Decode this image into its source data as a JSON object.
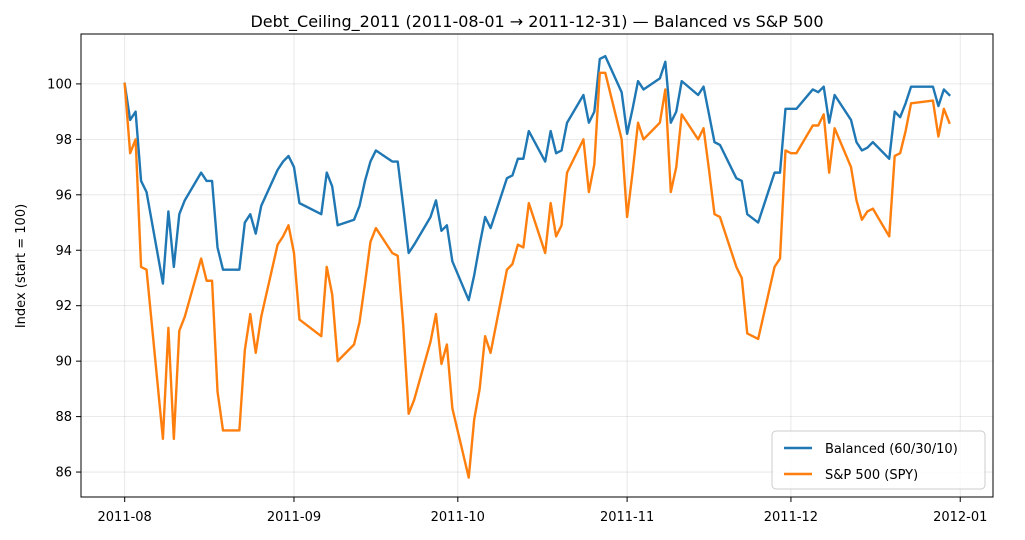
{
  "chart_data": {
    "type": "line",
    "title": "Debt_Ceiling_2011 (2011-08-01 → 2011-12-31) — Balanced vs S&P 500",
    "xlabel": "",
    "ylabel": "Index (start = 100)",
    "xlim": [
      "2011-07-24",
      "2012-01-07"
    ],
    "ylim": [
      85.1,
      101.8
    ],
    "x_ticks": [
      "2011-08-01",
      "2011-09-01",
      "2011-10-01",
      "2011-11-01",
      "2011-12-01",
      "2012-01-01"
    ],
    "x_tick_labels": [
      "2011-08",
      "2011-09",
      "2011-10",
      "2011-11",
      "2011-12",
      "2012-01"
    ],
    "y_ticks": [
      86,
      88,
      90,
      92,
      94,
      96,
      98,
      100
    ],
    "y_tick_labels": [
      "86",
      "88",
      "90",
      "92",
      "94",
      "96",
      "98",
      "100"
    ],
    "grid": true,
    "legend_position": "bottom-right",
    "series": [
      {
        "name": "Balanced (60/30/10)",
        "color": "#1f77b4",
        "points": [
          [
            "2011-08-01",
            100.0
          ],
          [
            "2011-08-02",
            98.7
          ],
          [
            "2011-08-03",
            99.0
          ],
          [
            "2011-08-04",
            96.5
          ],
          [
            "2011-08-05",
            96.1
          ],
          [
            "2011-08-08",
            92.8
          ],
          [
            "2011-08-09",
            95.4
          ],
          [
            "2011-08-10",
            93.4
          ],
          [
            "2011-08-11",
            95.3
          ],
          [
            "2011-08-12",
            95.8
          ],
          [
            "2011-08-15",
            96.8
          ],
          [
            "2011-08-16",
            96.5
          ],
          [
            "2011-08-17",
            96.5
          ],
          [
            "2011-08-18",
            94.1
          ],
          [
            "2011-08-19",
            93.3
          ],
          [
            "2011-08-22",
            93.3
          ],
          [
            "2011-08-23",
            95.0
          ],
          [
            "2011-08-24",
            95.3
          ],
          [
            "2011-08-25",
            94.6
          ],
          [
            "2011-08-26",
            95.6
          ],
          [
            "2011-08-29",
            96.9
          ],
          [
            "2011-08-30",
            97.2
          ],
          [
            "2011-08-31",
            97.4
          ],
          [
            "2011-09-01",
            97.0
          ],
          [
            "2011-09-02",
            95.7
          ],
          [
            "2011-09-06",
            95.3
          ],
          [
            "2011-09-07",
            96.8
          ],
          [
            "2011-09-08",
            96.3
          ],
          [
            "2011-09-09",
            94.9
          ],
          [
            "2011-09-12",
            95.1
          ],
          [
            "2011-09-13",
            95.6
          ],
          [
            "2011-09-14",
            96.5
          ],
          [
            "2011-09-15",
            97.2
          ],
          [
            "2011-09-16",
            97.6
          ],
          [
            "2011-09-19",
            97.2
          ],
          [
            "2011-09-20",
            97.2
          ],
          [
            "2011-09-21",
            95.6
          ],
          [
            "2011-09-22",
            93.9
          ],
          [
            "2011-09-23",
            94.2
          ],
          [
            "2011-09-26",
            95.2
          ],
          [
            "2011-09-27",
            95.8
          ],
          [
            "2011-09-28",
            94.7
          ],
          [
            "2011-09-29",
            94.9
          ],
          [
            "2011-09-30",
            93.6
          ],
          [
            "2011-10-03",
            92.2
          ],
          [
            "2011-10-04",
            93.1
          ],
          [
            "2011-10-05",
            94.2
          ],
          [
            "2011-10-06",
            95.2
          ],
          [
            "2011-10-07",
            94.8
          ],
          [
            "2011-10-10",
            96.6
          ],
          [
            "2011-10-11",
            96.7
          ],
          [
            "2011-10-12",
            97.3
          ],
          [
            "2011-10-13",
            97.3
          ],
          [
            "2011-10-14",
            98.3
          ],
          [
            "2011-10-17",
            97.2
          ],
          [
            "2011-10-18",
            98.3
          ],
          [
            "2011-10-19",
            97.5
          ],
          [
            "2011-10-20",
            97.6
          ],
          [
            "2011-10-21",
            98.6
          ],
          [
            "2011-10-24",
            99.6
          ],
          [
            "2011-10-25",
            98.6
          ],
          [
            "2011-10-26",
            99.0
          ],
          [
            "2011-10-27",
            100.9
          ],
          [
            "2011-10-28",
            101.0
          ],
          [
            "2011-10-31",
            99.7
          ],
          [
            "2011-11-01",
            98.2
          ],
          [
            "2011-11-02",
            99.1
          ],
          [
            "2011-11-03",
            100.1
          ],
          [
            "2011-11-04",
            99.8
          ],
          [
            "2011-11-07",
            100.2
          ],
          [
            "2011-11-08",
            100.8
          ],
          [
            "2011-11-09",
            98.6
          ],
          [
            "2011-11-10",
            99.0
          ],
          [
            "2011-11-11",
            100.1
          ],
          [
            "2011-11-14",
            99.6
          ],
          [
            "2011-11-15",
            99.9
          ],
          [
            "2011-11-16",
            98.9
          ],
          [
            "2011-11-17",
            97.9
          ],
          [
            "2011-11-18",
            97.8
          ],
          [
            "2011-11-21",
            96.6
          ],
          [
            "2011-11-22",
            96.5
          ],
          [
            "2011-11-23",
            95.3
          ],
          [
            "2011-11-25",
            95.0
          ],
          [
            "2011-11-28",
            96.8
          ],
          [
            "2011-11-29",
            96.8
          ],
          [
            "2011-11-30",
            99.1
          ],
          [
            "2011-12-01",
            99.1
          ],
          [
            "2011-12-02",
            99.1
          ],
          [
            "2011-12-05",
            99.8
          ],
          [
            "2011-12-06",
            99.7
          ],
          [
            "2011-12-07",
            99.9
          ],
          [
            "2011-12-08",
            98.6
          ],
          [
            "2011-12-09",
            99.6
          ],
          [
            "2011-12-12",
            98.7
          ],
          [
            "2011-12-13",
            97.9
          ],
          [
            "2011-12-14",
            97.6
          ],
          [
            "2011-12-15",
            97.7
          ],
          [
            "2011-12-16",
            97.9
          ],
          [
            "2011-12-19",
            97.3
          ],
          [
            "2011-12-20",
            99.0
          ],
          [
            "2011-12-21",
            98.8
          ],
          [
            "2011-12-22",
            99.3
          ],
          [
            "2011-12-23",
            99.9
          ],
          [
            "2011-12-27",
            99.9
          ],
          [
            "2011-12-28",
            99.2
          ],
          [
            "2011-12-29",
            99.8
          ],
          [
            "2011-12-30",
            99.6
          ]
        ]
      },
      {
        "name": "S&P 500 (SPY)",
        "color": "#ff7f0e",
        "points": [
          [
            "2011-08-01",
            100.0
          ],
          [
            "2011-08-02",
            97.5
          ],
          [
            "2011-08-03",
            98.0
          ],
          [
            "2011-08-04",
            93.4
          ],
          [
            "2011-08-05",
            93.3
          ],
          [
            "2011-08-08",
            87.2
          ],
          [
            "2011-08-09",
            91.2
          ],
          [
            "2011-08-10",
            87.2
          ],
          [
            "2011-08-11",
            91.1
          ],
          [
            "2011-08-12",
            91.6
          ],
          [
            "2011-08-15",
            93.7
          ],
          [
            "2011-08-16",
            92.9
          ],
          [
            "2011-08-17",
            92.9
          ],
          [
            "2011-08-18",
            88.9
          ],
          [
            "2011-08-19",
            87.5
          ],
          [
            "2011-08-22",
            87.5
          ],
          [
            "2011-08-23",
            90.4
          ],
          [
            "2011-08-24",
            91.7
          ],
          [
            "2011-08-25",
            90.3
          ],
          [
            "2011-08-26",
            91.6
          ],
          [
            "2011-08-29",
            94.2
          ],
          [
            "2011-08-30",
            94.5
          ],
          [
            "2011-08-31",
            94.9
          ],
          [
            "2011-09-01",
            93.9
          ],
          [
            "2011-09-02",
            91.5
          ],
          [
            "2011-09-06",
            90.9
          ],
          [
            "2011-09-07",
            93.4
          ],
          [
            "2011-09-08",
            92.4
          ],
          [
            "2011-09-09",
            90.0
          ],
          [
            "2011-09-12",
            90.6
          ],
          [
            "2011-09-13",
            91.4
          ],
          [
            "2011-09-14",
            92.8
          ],
          [
            "2011-09-15",
            94.3
          ],
          [
            "2011-09-16",
            94.8
          ],
          [
            "2011-09-19",
            93.9
          ],
          [
            "2011-09-20",
            93.8
          ],
          [
            "2011-09-21",
            91.3
          ],
          [
            "2011-09-22",
            88.1
          ],
          [
            "2011-09-23",
            88.6
          ],
          [
            "2011-09-26",
            90.7
          ],
          [
            "2011-09-27",
            91.7
          ],
          [
            "2011-09-28",
            89.9
          ],
          [
            "2011-09-29",
            90.6
          ],
          [
            "2011-09-30",
            88.3
          ],
          [
            "2011-10-03",
            85.8
          ],
          [
            "2011-10-04",
            87.9
          ],
          [
            "2011-10-05",
            89.0
          ],
          [
            "2011-10-06",
            90.9
          ],
          [
            "2011-10-07",
            90.3
          ],
          [
            "2011-10-10",
            93.3
          ],
          [
            "2011-10-11",
            93.5
          ],
          [
            "2011-10-12",
            94.2
          ],
          [
            "2011-10-13",
            94.1
          ],
          [
            "2011-10-14",
            95.7
          ],
          [
            "2011-10-17",
            93.9
          ],
          [
            "2011-10-18",
            95.7
          ],
          [
            "2011-10-19",
            94.5
          ],
          [
            "2011-10-20",
            94.9
          ],
          [
            "2011-10-21",
            96.8
          ],
          [
            "2011-10-24",
            98.0
          ],
          [
            "2011-10-25",
            96.1
          ],
          [
            "2011-10-26",
            97.1
          ],
          [
            "2011-10-27",
            100.4
          ],
          [
            "2011-10-28",
            100.4
          ],
          [
            "2011-10-31",
            98.0
          ],
          [
            "2011-11-01",
            95.2
          ],
          [
            "2011-11-02",
            96.8
          ],
          [
            "2011-11-03",
            98.6
          ],
          [
            "2011-11-04",
            98.0
          ],
          [
            "2011-11-07",
            98.6
          ],
          [
            "2011-11-08",
            99.8
          ],
          [
            "2011-11-09",
            96.1
          ],
          [
            "2011-11-10",
            97.0
          ],
          [
            "2011-11-11",
            98.9
          ],
          [
            "2011-11-14",
            98.0
          ],
          [
            "2011-11-15",
            98.4
          ],
          [
            "2011-11-16",
            96.9
          ],
          [
            "2011-11-17",
            95.3
          ],
          [
            "2011-11-18",
            95.2
          ],
          [
            "2011-11-21",
            93.4
          ],
          [
            "2011-11-22",
            93.0
          ],
          [
            "2011-11-23",
            91.0
          ],
          [
            "2011-11-25",
            90.8
          ],
          [
            "2011-11-28",
            93.4
          ],
          [
            "2011-11-29",
            93.7
          ],
          [
            "2011-11-30",
            97.6
          ],
          [
            "2011-12-01",
            97.5
          ],
          [
            "2011-12-02",
            97.5
          ],
          [
            "2011-12-05",
            98.5
          ],
          [
            "2011-12-06",
            98.5
          ],
          [
            "2011-12-07",
            98.9
          ],
          [
            "2011-12-08",
            96.8
          ],
          [
            "2011-12-09",
            98.4
          ],
          [
            "2011-12-12",
            97.0
          ],
          [
            "2011-12-13",
            95.8
          ],
          [
            "2011-12-14",
            95.1
          ],
          [
            "2011-12-15",
            95.4
          ],
          [
            "2011-12-16",
            95.5
          ],
          [
            "2011-12-19",
            94.5
          ],
          [
            "2011-12-20",
            97.4
          ],
          [
            "2011-12-21",
            97.5
          ],
          [
            "2011-12-22",
            98.3
          ],
          [
            "2011-12-23",
            99.3
          ],
          [
            "2011-12-27",
            99.4
          ],
          [
            "2011-12-28",
            98.1
          ],
          [
            "2011-12-29",
            99.1
          ],
          [
            "2011-12-30",
            98.6
          ]
        ]
      }
    ]
  }
}
